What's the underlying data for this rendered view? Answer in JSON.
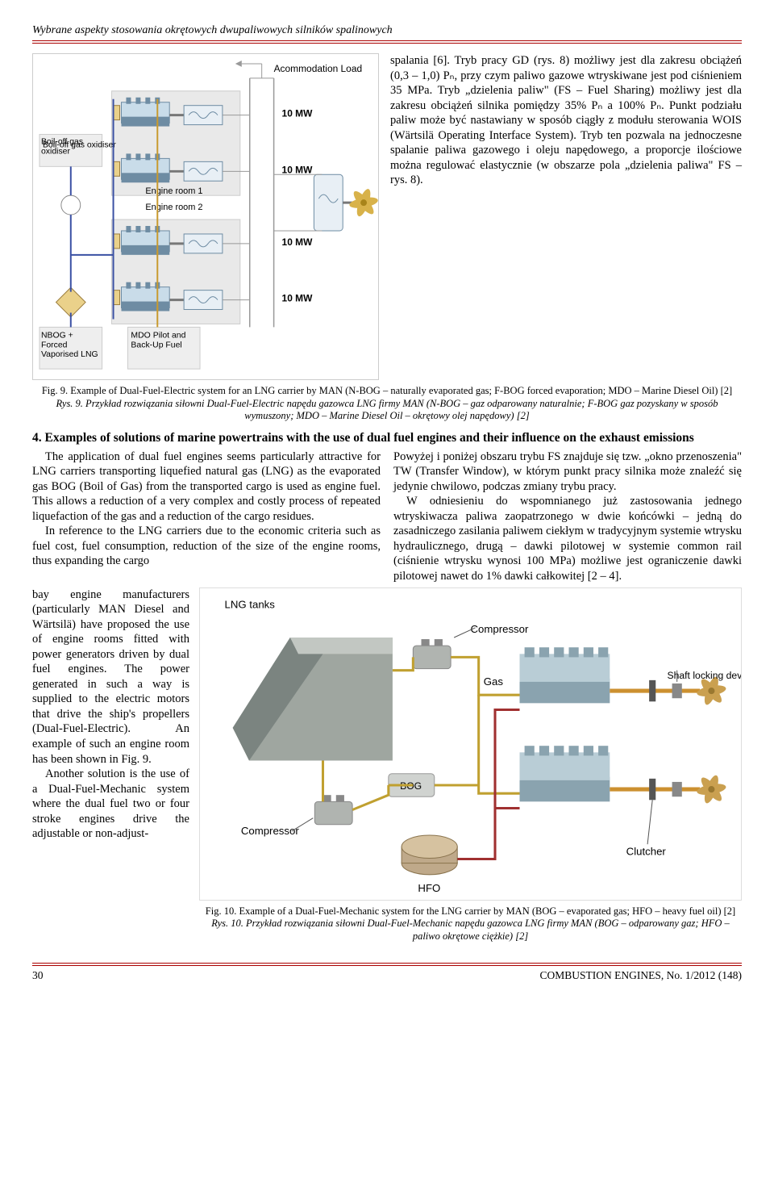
{
  "running_head": "Wybrane aspekty stosowania okrętowych dwupaliwowych silników spalinowych",
  "footer": {
    "page": "30",
    "journal": "COMBUSTION ENGINES, No. 1/2012 (148)"
  },
  "fig9": {
    "caption_en": "Fig. 9. Example of Dual-Fuel-Electric system for an LNG carrier by MAN (N-BOG – naturally evaporated gas; F-BOG forced evaporation; MDO – Marine Diesel Oil) [2]",
    "caption_pl": "Rys. 9. Przykład rozwiązania siłowni Dual-Fuel-Electric napędu gazowca LNG firmy MAN (N-BOG – gaz odparowany naturalnie; F-BOG gaz pozyskany w sposób wymuszony; MDO – Marine Diesel Oil – okrętowy olej napędowy) [2]",
    "power_labels": [
      "10 MW",
      "10 MW",
      "10 MW",
      "10 MW"
    ],
    "top_label": "Acommodation Load",
    "box_oxidiser": "Boil-off gas oxidiser",
    "box_nbog": "NBOG + Forced Vaporised LNG",
    "box_mdo": "MDO Pilot and Back-Up Fuel",
    "room1": "Engine room 1",
    "room2": "Engine room 2",
    "colors": {
      "tank": "#ead18a",
      "engine_body": "#c9dce9",
      "engine_outline": "#6e8ca3",
      "pipe_blue": "#3a50a3",
      "pipe_gold": "#c89a2e",
      "gen_rect": "#e8eff5",
      "room_bg": "#e9e9e9",
      "box_bg": "#eeeeee",
      "prop": "#d8b24a",
      "wire": "#999999"
    },
    "font": {
      "label_size": 12,
      "family": "Arial"
    }
  },
  "right_text": "spalania [6]. Tryb pra­cy GD (rys. 8) możliwy jest dla zakresu obciążeń (0,3 – 1,0) Pₙ, przy czym paliwo gazowe wtryskiwane jest pod ciśnieniem 35 MPa. Tryb „dzielenia paliw\" (FS – Fuel Sharing) możliwy jest dla zakresu obciążeń silnika pomiędzy 35% Pₙ a 100% Pₙ. Punkt podziału paliw może być nastawiany w sposób ciągły z modułu sterowania WOIS (Wärtsilä Operating Interface System). Tryb ten pozwala na jednoczesne spalanie paliwa gazowego i oleju napędowego, a proporcje ilościowe można regulować elastycznie (w obszarze pola „dzielenia paliwa\" FS – rys. 8).",
  "section4_heading": "4. Examples of solutions of marine powertrains with the use of dual fuel engines and their influence on the exhaust emissions",
  "left_col_p1": "The application of dual fuel engines seems particularly attractive for LNG carriers transporting liquefied natural gas (LNG) as the evaporated gas BOG (Boil of Gas) from the transported cargo is used as engine fuel. This allows a reduction of a very complex and costly process of repeated liquefaction of the gas and a reduction of the cargo residues.",
  "left_col_p2": "In reference to the LNG carriers due to the economic criteria such as fuel cost, fuel consumption, reduction of the size of the engine rooms, thus expanding the cargo",
  "right_col_p1": "Powyżej i poniżej obszaru trybu FS znajduje się tzw. „okno przenoszenia\" TW (Transfer Window), w którym punkt pracy silnika może znaleźć się jedynie chwilowo, podczas zmiany trybu pracy.",
  "right_col_p2": "W odniesieniu do wspomnianego już zastosowania jednego wtryskiwacza paliwa zaopatrzonego w dwie końcówki – jedną do zasadniczego zasilania paliwem ciekłym w tradycyjnym systemie wtrysku hydraulicznego, drugą – dawki pilotowej w systemie common rail (ciśnienie wtrysku wynosi 100 MPa) możliwe jest ograniczenie dawki pilotowej nawet do 1% dawki całkowitej [2 – 4].",
  "narrow_left": "bay engine manufacturers (particularly MAN Diesel and Wärtsilä) have proposed the use of engine rooms fitted with power generators driven by dual fuel engines. The power generated in such a way is supplied to the electric motors that drive the ship's propellers (Dual-Fuel-Electric). An example of such an engine room has been shown in Fig. 9.\n\nAnother solution is the use of a Dual-Fuel-Mechanic system where the dual fuel two or four stroke engines drive the adjustable or non-adjust-",
  "fig10": {
    "caption_en": "Fig. 10. Example of a Dual-Fuel-Mechanic system for the LNG carrier by MAN (BOG – evaporated gas; HFO – heavy fuel oil) [2]",
    "caption_pl": "Rys. 10. Przykład rozwiązania siłowni Dual-Fuel-Mechanic napędu gazowca LNG firmy MAN (BOG – odparowany gaz; HFO – paliwo okrętowe ciężkie) [2]",
    "labels": {
      "lng_tanks": "LNG tanks",
      "compressor_top": "Compressor",
      "compressor_bottom": "Compressor",
      "bog": "BOG",
      "gas": "Gas",
      "hfo": "HFO",
      "clutcher": "Clutcher",
      "shaft_lock": "Shaft locking device"
    },
    "colors": {
      "tank": "#9fa6a0",
      "tank_shade": "#7b8480",
      "compressor": "#b0b4b0",
      "engine": "#b9cdd6",
      "engine_dark": "#8aa3af",
      "pipe_gas": "#c0a030",
      "pipe_hfo": "#a03030",
      "shaft": "#cc9030",
      "prop": "#caa050"
    },
    "font": {
      "label_size": 13,
      "family": "Arial"
    }
  }
}
